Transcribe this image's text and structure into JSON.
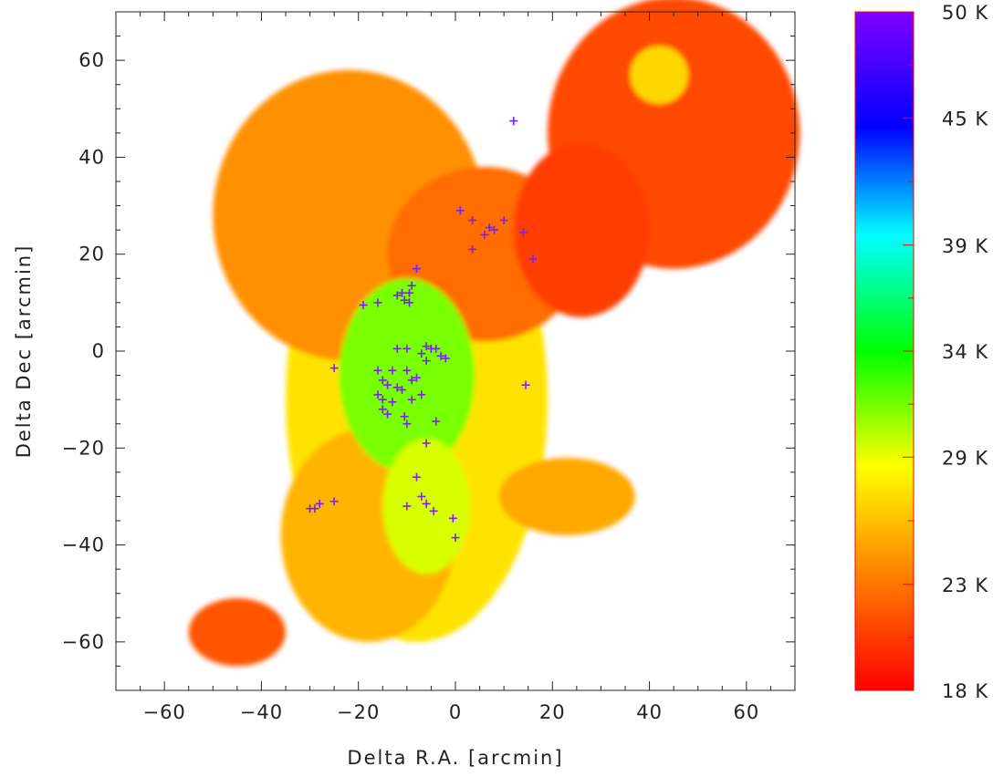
{
  "chart_data": {
    "type": "heatmap",
    "title": "",
    "xlabel": "Delta R.A. [arcmin]",
    "ylabel": "Delta Dec [arcmin]",
    "xlim": [
      -70,
      70
    ],
    "ylim": [
      -70,
      70
    ],
    "x_ticks": [
      -60,
      -40,
      -20,
      0,
      20,
      40,
      60
    ],
    "y_ticks": [
      -60,
      -40,
      -20,
      0,
      20,
      40,
      60
    ],
    "x_tick_labels": [
      "−60",
      "−40",
      "−20",
      "0",
      "20",
      "40",
      "60"
    ],
    "y_tick_labels": [
      "−60",
      "−40",
      "−20",
      "0",
      "20",
      "40",
      "60"
    ],
    "colorbar": {
      "min": 18,
      "max": 50,
      "unit": "K",
      "tick_values": [
        18,
        23,
        29,
        34,
        39,
        45,
        50
      ],
      "tick_labels": [
        "18 K",
        "23 K",
        "29 K",
        "34 K",
        "39 K",
        "45 K",
        "50 K"
      ],
      "colormap": [
        "#ff0000",
        "#ff8000",
        "#ffff00",
        "#00ff00",
        "#00ffff",
        "#0000ff",
        "#8000ff"
      ]
    },
    "marker": {
      "symbol": "+",
      "color": "#7a22f5"
    },
    "blobs": [
      {
        "cx": -8,
        "cy": -10,
        "rx": 27,
        "ry": 50,
        "temp": 27.5
      },
      {
        "cx": -22,
        "cy": 28,
        "rx": 28,
        "ry": 30,
        "temp": 24
      },
      {
        "cx": 6,
        "cy": 20,
        "rx": 20,
        "ry": 18,
        "temp": 22.5
      },
      {
        "cx": 45,
        "cy": 45,
        "rx": 26,
        "ry": 28,
        "temp": 21
      },
      {
        "cx": 26,
        "cy": 25,
        "rx": 14,
        "ry": 18,
        "temp": 20.5
      },
      {
        "cx": -18,
        "cy": -38,
        "rx": 18,
        "ry": 22,
        "temp": 25.5
      },
      {
        "cx": -45,
        "cy": -58,
        "rx": 10,
        "ry": 7,
        "temp": 21.5
      },
      {
        "cx": -10,
        "cy": -5,
        "rx": 14,
        "ry": 20,
        "temp": 31.5
      },
      {
        "cx": -6,
        "cy": -32,
        "rx": 9,
        "ry": 14,
        "temp": 29.5
      },
      {
        "cx": 23,
        "cy": -30,
        "rx": 14,
        "ry": 8,
        "temp": 25
      },
      {
        "cx": 42,
        "cy": 57,
        "rx": 6,
        "ry": 6,
        "temp": 27
      }
    ],
    "points": [
      [
        12,
        47.5
      ],
      [
        1,
        29
      ],
      [
        3.5,
        27
      ],
      [
        7,
        25.5
      ],
      [
        8,
        25
      ],
      [
        10,
        27
      ],
      [
        6,
        24
      ],
      [
        14,
        24.5
      ],
      [
        3.5,
        21
      ],
      [
        16,
        19
      ],
      [
        -8,
        17
      ],
      [
        -9,
        13.5
      ],
      [
        -9.5,
        12
      ],
      [
        -11,
        12
      ],
      [
        -12,
        11.5
      ],
      [
        -10.5,
        10.5
      ],
      [
        -9.5,
        10
      ],
      [
        -16,
        10
      ],
      [
        -19,
        9.5
      ],
      [
        -12,
        0.5
      ],
      [
        -10,
        0.5
      ],
      [
        -6,
        1
      ],
      [
        -5,
        0.5
      ],
      [
        -4,
        0.5
      ],
      [
        -7,
        -0.5
      ],
      [
        -3,
        -1
      ],
      [
        -2,
        -1.5
      ],
      [
        -6,
        -2
      ],
      [
        -25,
        -3.5
      ],
      [
        -16,
        -4
      ],
      [
        -13,
        -4
      ],
      [
        -10,
        -4
      ],
      [
        -15,
        -6
      ],
      [
        -14,
        -7
      ],
      [
        -12,
        -7.5
      ],
      [
        -9,
        -6
      ],
      [
        -8,
        -5.5
      ],
      [
        -11,
        -8
      ],
      [
        -16,
        -9
      ],
      [
        -15,
        -10
      ],
      [
        -13,
        -10.5
      ],
      [
        -9,
        -10
      ],
      [
        -7,
        -9
      ],
      [
        -15,
        -12
      ],
      [
        -14,
        -13
      ],
      [
        -10.5,
        -13.5
      ],
      [
        14.5,
        -7
      ],
      [
        -4,
        -14.5
      ],
      [
        -10,
        -15
      ],
      [
        -6,
        -19
      ],
      [
        -8,
        -26
      ],
      [
        -7,
        -30
      ],
      [
        -6,
        -31.5
      ],
      [
        -10,
        -32
      ],
      [
        -4.5,
        -33
      ],
      [
        -25,
        -31
      ],
      [
        -28,
        -31.5
      ],
      [
        -29,
        -32.5
      ],
      [
        -30,
        -32.5
      ],
      [
        -0.5,
        -34.5
      ],
      [
        0,
        -38.5
      ]
    ]
  }
}
